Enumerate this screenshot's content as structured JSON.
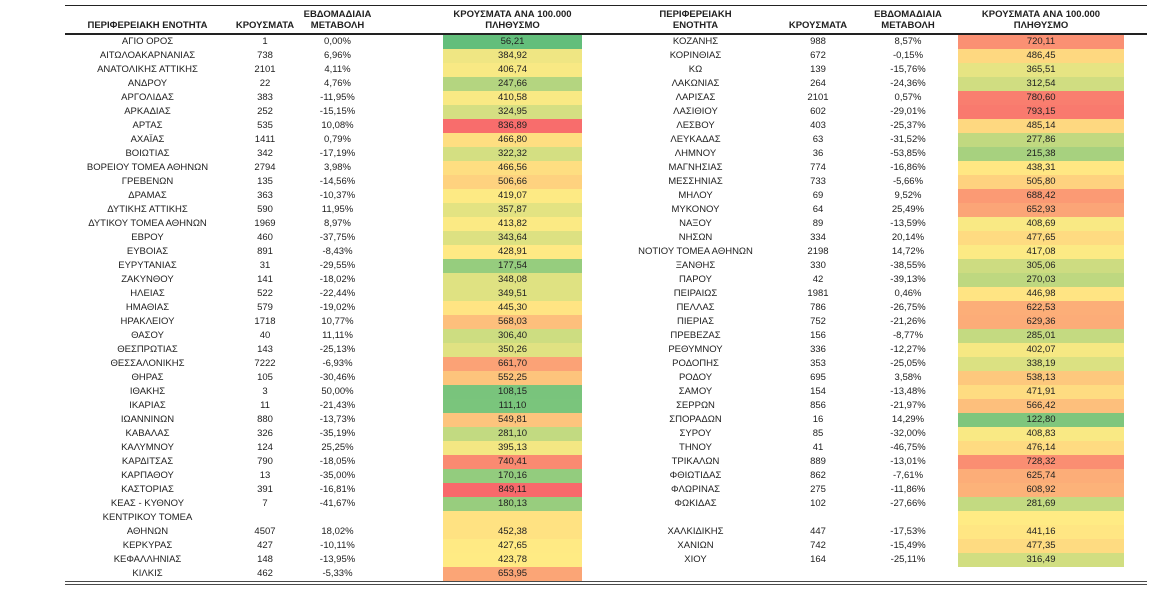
{
  "headers": {
    "region": "ΠΕΡΙΦΕΡΕΙΑΚΗ ΕΝΟΤΗΤΑ",
    "cases": "ΚΡΟΥΣΜΑΤΑ",
    "weekly_change": "ΕΒΔΟΜΑΔΙΑΙΑ ΜΕΤΑΒΟΛΗ",
    "rate": "ΚΡΟΥΣΜΑΤΑ ΑΝΑ 100.000 ΠΛΗΘΥΣΜΟ"
  },
  "color_scale": {
    "low": "#63BE7B",
    "mid": "#FFEB84",
    "high": "#F8696B"
  },
  "left_rows": [
    {
      "name": "ΑΓΙΟ ΟΡΟΣ",
      "cases": "1",
      "change": "0,00%",
      "rate": "56,21",
      "value": 56.21
    },
    {
      "name": "ΑΙΤΩΛΟΑΚΑΡΝΑΝΙΑΣ",
      "cases": "738",
      "change": "6,96%",
      "rate": "384,92",
      "value": 384.92
    },
    {
      "name": "ΑΝΑΤΟΛΙΚΗΣ ΑΤΤΙΚΗΣ",
      "cases": "2101",
      "change": "4,11%",
      "rate": "406,74",
      "value": 406.74
    },
    {
      "name": "ΑΝΔΡΟΥ",
      "cases": "22",
      "change": "4,76%",
      "rate": "247,66",
      "value": 247.66
    },
    {
      "name": "ΑΡΓΟΛΙΔΑΣ",
      "cases": "383",
      "change": "-11,95%",
      "rate": "410,58",
      "value": 410.58
    },
    {
      "name": "ΑΡΚΑΔΙΑΣ",
      "cases": "252",
      "change": "-15,15%",
      "rate": "324,95",
      "value": 324.95
    },
    {
      "name": "ΑΡΤΑΣ",
      "cases": "535",
      "change": "10,08%",
      "rate": "836,89",
      "value": 836.89
    },
    {
      "name": "ΑΧΑΪΑΣ",
      "cases": "1411",
      "change": "0,79%",
      "rate": "466,80",
      "value": 466.8
    },
    {
      "name": "ΒΟΙΩΤΙΑΣ",
      "cases": "342",
      "change": "-17,19%",
      "rate": "322,32",
      "value": 322.32
    },
    {
      "name": "ΒΟΡΕΙΟΥ ΤΟΜΕΑ ΑΘΗΝΩΝ",
      "cases": "2794",
      "change": "3,98%",
      "rate": "466,56",
      "value": 466.56
    },
    {
      "name": "ΓΡΕΒΕΝΩΝ",
      "cases": "135",
      "change": "-14,56%",
      "rate": "506,66",
      "value": 506.66
    },
    {
      "name": "ΔΡΑΜΑΣ",
      "cases": "363",
      "change": "-10,37%",
      "rate": "419,07",
      "value": 419.07
    },
    {
      "name": "ΔΥΤΙΚΗΣ ΑΤΤΙΚΗΣ",
      "cases": "590",
      "change": "11,95%",
      "rate": "357,87",
      "value": 357.87
    },
    {
      "name": "ΔΥΤΙΚΟΥ ΤΟΜΕΑ ΑΘΗΝΩΝ",
      "cases": "1969",
      "change": "8,97%",
      "rate": "413,82",
      "value": 413.82
    },
    {
      "name": "ΕΒΡΟΥ",
      "cases": "460",
      "change": "-37,75%",
      "rate": "343,64",
      "value": 343.64
    },
    {
      "name": "ΕΥΒΟΙΑΣ",
      "cases": "891",
      "change": "-8,43%",
      "rate": "428,91",
      "value": 428.91
    },
    {
      "name": "ΕΥΡΥΤΑΝΙΑΣ",
      "cases": "31",
      "change": "-29,55%",
      "rate": "177,54",
      "value": 177.54
    },
    {
      "name": "ΖΑΚΥΝΘΟΥ",
      "cases": "141",
      "change": "-18,02%",
      "rate": "348,08",
      "value": 348.08
    },
    {
      "name": "ΗΛΕΙΑΣ",
      "cases": "522",
      "change": "-22,44%",
      "rate": "349,51",
      "value": 349.51
    },
    {
      "name": "ΗΜΑΘΙΑΣ",
      "cases": "579",
      "change": "-19,02%",
      "rate": "445,30",
      "value": 445.3
    },
    {
      "name": "ΗΡΑΚΛΕΙΟΥ",
      "cases": "1718",
      "change": "10,77%",
      "rate": "568,03",
      "value": 568.03
    },
    {
      "name": "ΘΑΣΟΥ",
      "cases": "40",
      "change": "11,11%",
      "rate": "306,40",
      "value": 306.4
    },
    {
      "name": "ΘΕΣΠΡΩΤΙΑΣ",
      "cases": "143",
      "change": "-25,13%",
      "rate": "350,26",
      "value": 350.26
    },
    {
      "name": "ΘΕΣΣΑΛΟΝΙΚΗΣ",
      "cases": "7222",
      "change": "-6,93%",
      "rate": "661,70",
      "value": 661.7
    },
    {
      "name": "ΘΗΡΑΣ",
      "cases": "105",
      "change": "-30,46%",
      "rate": "552,25",
      "value": 552.25
    },
    {
      "name": "ΙΘΑΚΗΣ",
      "cases": "3",
      "change": "50,00%",
      "rate": "108,15",
      "value": 108.15
    },
    {
      "name": "ΙΚΑΡΙΑΣ",
      "cases": "11",
      "change": "-21,43%",
      "rate": "111,10",
      "value": 111.1
    },
    {
      "name": "ΙΩΑΝΝΙΝΩΝ",
      "cases": "880",
      "change": "-13,73%",
      "rate": "549,81",
      "value": 549.81
    },
    {
      "name": "ΚΑΒΑΛΑΣ",
      "cases": "326",
      "change": "-35,19%",
      "rate": "281,10",
      "value": 281.1
    },
    {
      "name": "ΚΑΛΥΜΝΟΥ",
      "cases": "124",
      "change": "25,25%",
      "rate": "395,13",
      "value": 395.13
    },
    {
      "name": "ΚΑΡΔΙΤΣΑΣ",
      "cases": "790",
      "change": "-18,05%",
      "rate": "740,41",
      "value": 740.41
    },
    {
      "name": "ΚΑΡΠΑΘΟΥ",
      "cases": "13",
      "change": "-35,00%",
      "rate": "170,16",
      "value": 170.16
    },
    {
      "name": "ΚΑΣΤΟΡΙΑΣ",
      "cases": "391",
      "change": "-16,81%",
      "rate": "849,11",
      "value": 849.11
    },
    {
      "name": "ΚΕΑΣ - ΚΥΘΝΟΥ",
      "cases": "7",
      "change": "-41,67%",
      "rate": "180,13",
      "value": 180.13
    },
    {
      "name": "ΚΕΝΤΡΙΚΟΥ ΤΟΜΕΑ ΑΘΗΝΩΝ",
      "wrap": [
        "ΚΕΝΤΡΙΚΟΥ ΤΟΜΕΑ",
        "ΑΘΗΝΩΝ"
      ],
      "cases": "4507",
      "change": "18,02%",
      "rate": "452,38",
      "value": 452.38
    },
    {
      "name": "ΚΕΡΚΥΡΑΣ",
      "cases": "427",
      "change": "-10,11%",
      "rate": "427,65",
      "value": 427.65
    },
    {
      "name": "ΚΕΦΑΛΛΗΝΙΑΣ",
      "cases": "148",
      "change": "-13,95%",
      "rate": "423,78",
      "value": 423.78
    },
    {
      "name": "ΚΙΛΚΙΣ",
      "cases": "462",
      "change": "-5,33%",
      "rate": "653,95",
      "value": 653.95
    }
  ],
  "right_rows": [
    {
      "name": "ΚΟΖΑΝΗΣ",
      "cases": "988",
      "change": "8,57%",
      "rate": "720,11",
      "value": 720.11
    },
    {
      "name": "ΚΟΡΙΝΘΙΑΣ",
      "cases": "672",
      "change": "-0,15%",
      "rate": "486,45",
      "value": 486.45
    },
    {
      "name": "ΚΩ",
      "cases": "139",
      "change": "-15,76%",
      "rate": "365,51",
      "value": 365.51
    },
    {
      "name": "ΛΑΚΩΝΙΑΣ",
      "cases": "264",
      "change": "-24,36%",
      "rate": "312,54",
      "value": 312.54
    },
    {
      "name": "ΛΑΡΙΣΑΣ",
      "cases": "2101",
      "change": "0,57%",
      "rate": "780,60",
      "value": 780.6
    },
    {
      "name": "ΛΑΣΙΘΙΟΥ",
      "cases": "602",
      "change": "-29,01%",
      "rate": "793,15",
      "value": 793.15
    },
    {
      "name": "ΛΕΣΒΟΥ",
      "cases": "403",
      "change": "-25,37%",
      "rate": "485,14",
      "value": 485.14
    },
    {
      "name": "ΛΕΥΚΑΔΑΣ",
      "cases": "63",
      "change": "-31,52%",
      "rate": "277,86",
      "value": 277.86
    },
    {
      "name": "ΛΗΜΝΟΥ",
      "cases": "36",
      "change": "-53,85%",
      "rate": "215,38",
      "value": 215.38
    },
    {
      "name": "ΜΑΓΝΗΣΙΑΣ",
      "cases": "774",
      "change": "-16,86%",
      "rate": "438,31",
      "value": 438.31
    },
    {
      "name": "ΜΕΣΣΗΝΙΑΣ",
      "cases": "733",
      "change": "-5,66%",
      "rate": "505,80",
      "value": 505.8
    },
    {
      "name": "ΜΗΛΟΥ",
      "cases": "69",
      "change": "9,52%",
      "rate": "688,42",
      "value": 688.42
    },
    {
      "name": "ΜΥΚΟΝΟΥ",
      "cases": "64",
      "change": "25,49%",
      "rate": "652,93",
      "value": 652.93
    },
    {
      "name": "ΝΑΞΟΥ",
      "cases": "89",
      "change": "-13,59%",
      "rate": "408,69",
      "value": 408.69
    },
    {
      "name": "ΝΗΣΩΝ",
      "cases": "334",
      "change": "20,14%",
      "rate": "477,65",
      "value": 477.65
    },
    {
      "name": "ΝΟΤΙΟΥ ΤΟΜΕΑ ΑΘΗΝΩΝ",
      "cases": "2198",
      "change": "14,72%",
      "rate": "417,08",
      "value": 417.08
    },
    {
      "name": "ΞΑΝΘΗΣ",
      "cases": "330",
      "change": "-38,55%",
      "rate": "305,06",
      "value": 305.06
    },
    {
      "name": "ΠΑΡΟΥ",
      "cases": "42",
      "change": "-39,13%",
      "rate": "270,03",
      "value": 270.03
    },
    {
      "name": "ΠΕΙΡΑΙΩΣ",
      "cases": "1981",
      "change": "0,46%",
      "rate": "446,98",
      "value": 446.98
    },
    {
      "name": "ΠΕΛΛΑΣ",
      "cases": "786",
      "change": "-26,75%",
      "rate": "622,53",
      "value": 622.53
    },
    {
      "name": "ΠΙΕΡΙΑΣ",
      "cases": "752",
      "change": "-21,26%",
      "rate": "629,36",
      "value": 629.36
    },
    {
      "name": "ΠΡΕΒΕΖΑΣ",
      "cases": "156",
      "change": "-8,77%",
      "rate": "285,01",
      "value": 285.01
    },
    {
      "name": "ΡΕΘΥΜΝΟΥ",
      "cases": "336",
      "change": "-12,27%",
      "rate": "402,07",
      "value": 402.07
    },
    {
      "name": "ΡΟΔΟΠΗΣ",
      "cases": "353",
      "change": "-25,05%",
      "rate": "338,19",
      "value": 338.19
    },
    {
      "name": "ΡΟΔΟΥ",
      "cases": "695",
      "change": "3,58%",
      "rate": "538,13",
      "value": 538.13
    },
    {
      "name": "ΣΑΜΟΥ",
      "cases": "154",
      "change": "-13,48%",
      "rate": "471,91",
      "value": 471.91
    },
    {
      "name": "ΣΕΡΡΩΝ",
      "cases": "856",
      "change": "-21,97%",
      "rate": "566,42",
      "value": 566.42
    },
    {
      "name": "ΣΠΟΡΑΔΩΝ",
      "cases": "16",
      "change": "14,29%",
      "rate": "122,80",
      "value": 122.8
    },
    {
      "name": "ΣΥΡΟΥ",
      "cases": "85",
      "change": "-32,00%",
      "rate": "408,83",
      "value": 408.83
    },
    {
      "name": "ΤΗΝΟΥ",
      "cases": "41",
      "change": "-46,75%",
      "rate": "476,14",
      "value": 476.14
    },
    {
      "name": "ΤΡΙΚΑΛΩΝ",
      "cases": "889",
      "change": "-13,01%",
      "rate": "728,32",
      "value": 728.32
    },
    {
      "name": "ΦΘΙΩΤΙΔΑΣ",
      "cases": "862",
      "change": "-7,61%",
      "rate": "625,74",
      "value": 625.74
    },
    {
      "name": "ΦΛΩΡΙΝΑΣ",
      "cases": "275",
      "change": "-11,86%",
      "rate": "608,92",
      "value": 608.92
    },
    {
      "name": "ΦΩΚΙΔΑΣ",
      "cases": "102",
      "change": "-27,66%",
      "rate": "281,69",
      "value": 281.69
    },
    {
      "blank": true,
      "fill": "mid"
    },
    {
      "name": "ΧΑΛΚΙΔΙΚΗΣ",
      "cases": "447",
      "change": "-17,53%",
      "rate": "441,16",
      "value": 441.16
    },
    {
      "name": "ΧΑΝΙΩΝ",
      "cases": "742",
      "change": "-15,49%",
      "rate": "477,35",
      "value": 477.35
    },
    {
      "name": "ΧΙΟΥ",
      "cases": "164",
      "change": "-25,11%",
      "rate": "316,49",
      "value": 316.49
    },
    {
      "blank": true
    }
  ]
}
